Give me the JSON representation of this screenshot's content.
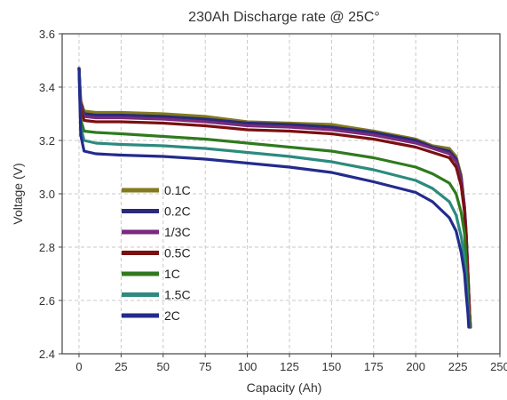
{
  "chart_data": {
    "type": "line",
    "title": "230Ah Discharge rate @ 25C°",
    "xlabel": "Capacity (Ah)",
    "ylabel": "Voltage (V)",
    "xlim": [
      -10,
      250
    ],
    "ylim": [
      2.4,
      3.6
    ],
    "x_ticks": [
      "0",
      "25",
      "50",
      "75",
      "100",
      "125",
      "150",
      "175",
      "200",
      "225",
      "250"
    ],
    "y_ticks": [
      "2.4",
      "2.6",
      "2.8",
      "3.0",
      "3.2",
      "3.4",
      "3.6"
    ],
    "grid": true,
    "legend_position": "bottom-left",
    "series": [
      {
        "name": "0.1C",
        "color": "#827a1e",
        "points": [
          [
            0,
            3.47
          ],
          [
            1,
            3.35
          ],
          [
            3,
            3.31
          ],
          [
            10,
            3.305
          ],
          [
            25,
            3.305
          ],
          [
            50,
            3.3
          ],
          [
            75,
            3.29
          ],
          [
            100,
            3.27
          ],
          [
            125,
            3.265
          ],
          [
            150,
            3.26
          ],
          [
            175,
            3.235
          ],
          [
            200,
            3.205
          ],
          [
            210,
            3.18
          ],
          [
            220,
            3.17
          ],
          [
            224,
            3.14
          ],
          [
            227,
            3.07
          ],
          [
            229,
            2.95
          ],
          [
            230,
            2.85
          ],
          [
            231,
            2.7
          ],
          [
            232,
            2.55
          ],
          [
            232.5,
            2.5
          ]
        ]
      },
      {
        "name": "0.2C",
        "color": "#2a2a7a",
        "points": [
          [
            0,
            3.47
          ],
          [
            1,
            3.34
          ],
          [
            3,
            3.3
          ],
          [
            10,
            3.295
          ],
          [
            25,
            3.295
          ],
          [
            50,
            3.29
          ],
          [
            75,
            3.28
          ],
          [
            100,
            3.265
          ],
          [
            125,
            3.26
          ],
          [
            150,
            3.25
          ],
          [
            175,
            3.23
          ],
          [
            200,
            3.2
          ],
          [
            210,
            3.175
          ],
          [
            220,
            3.16
          ],
          [
            224,
            3.13
          ],
          [
            227,
            3.06
          ],
          [
            229,
            2.95
          ],
          [
            230,
            2.85
          ],
          [
            231,
            2.7
          ],
          [
            232,
            2.55
          ],
          [
            232.5,
            2.5
          ]
        ]
      },
      {
        "name": "1/3C",
        "color": "#7a2a7e",
        "points": [
          [
            0,
            3.47
          ],
          [
            1,
            3.33
          ],
          [
            3,
            3.29
          ],
          [
            10,
            3.285
          ],
          [
            25,
            3.285
          ],
          [
            50,
            3.28
          ],
          [
            75,
            3.27
          ],
          [
            100,
            3.255
          ],
          [
            125,
            3.25
          ],
          [
            150,
            3.24
          ],
          [
            175,
            3.22
          ],
          [
            200,
            3.19
          ],
          [
            210,
            3.17
          ],
          [
            220,
            3.15
          ],
          [
            224,
            3.12
          ],
          [
            227,
            3.05
          ],
          [
            229,
            2.94
          ],
          [
            230,
            2.84
          ],
          [
            231,
            2.7
          ],
          [
            232,
            2.55
          ],
          [
            232.5,
            2.5
          ]
        ]
      },
      {
        "name": "0.5C",
        "color": "#7a1010",
        "points": [
          [
            0,
            3.47
          ],
          [
            1,
            3.32
          ],
          [
            3,
            3.275
          ],
          [
            10,
            3.27
          ],
          [
            25,
            3.27
          ],
          [
            50,
            3.265
          ],
          [
            75,
            3.255
          ],
          [
            100,
            3.24
          ],
          [
            125,
            3.235
          ],
          [
            150,
            3.225
          ],
          [
            175,
            3.205
          ],
          [
            200,
            3.175
          ],
          [
            210,
            3.155
          ],
          [
            220,
            3.135
          ],
          [
            224,
            3.1
          ],
          [
            227,
            3.03
          ],
          [
            229,
            2.93
          ],
          [
            230,
            2.83
          ],
          [
            231,
            2.7
          ],
          [
            232,
            2.55
          ],
          [
            232.5,
            2.5
          ]
        ]
      },
      {
        "name": "1C",
        "color": "#2f7a1e",
        "points": [
          [
            0,
            3.47
          ],
          [
            1,
            3.28
          ],
          [
            3,
            3.235
          ],
          [
            10,
            3.23
          ],
          [
            25,
            3.225
          ],
          [
            50,
            3.215
          ],
          [
            75,
            3.205
          ],
          [
            100,
            3.19
          ],
          [
            125,
            3.175
          ],
          [
            150,
            3.16
          ],
          [
            175,
            3.135
          ],
          [
            200,
            3.1
          ],
          [
            210,
            3.075
          ],
          [
            220,
            3.04
          ],
          [
            224,
            3.0
          ],
          [
            227,
            2.93
          ],
          [
            229,
            2.85
          ],
          [
            230,
            2.75
          ],
          [
            231,
            2.62
          ],
          [
            232,
            2.5
          ]
        ]
      },
      {
        "name": "1.5C",
        "color": "#2c8a7e",
        "points": [
          [
            0,
            3.47
          ],
          [
            1,
            3.25
          ],
          [
            3,
            3.2
          ],
          [
            10,
            3.19
          ],
          [
            25,
            3.185
          ],
          [
            50,
            3.18
          ],
          [
            75,
            3.17
          ],
          [
            100,
            3.155
          ],
          [
            125,
            3.14
          ],
          [
            150,
            3.12
          ],
          [
            175,
            3.09
          ],
          [
            200,
            3.05
          ],
          [
            210,
            3.02
          ],
          [
            220,
            2.97
          ],
          [
            224,
            2.92
          ],
          [
            227,
            2.84
          ],
          [
            229,
            2.76
          ],
          [
            230,
            2.68
          ],
          [
            231,
            2.58
          ],
          [
            232,
            2.5
          ]
        ]
      },
      {
        "name": "2C",
        "color": "#232b8c",
        "points": [
          [
            0,
            3.47
          ],
          [
            1,
            3.22
          ],
          [
            3,
            3.16
          ],
          [
            10,
            3.15
          ],
          [
            25,
            3.145
          ],
          [
            50,
            3.14
          ],
          [
            75,
            3.13
          ],
          [
            100,
            3.115
          ],
          [
            125,
            3.1
          ],
          [
            150,
            3.08
          ],
          [
            175,
            3.045
          ],
          [
            200,
            3.005
          ],
          [
            210,
            2.97
          ],
          [
            220,
            2.91
          ],
          [
            224,
            2.86
          ],
          [
            227,
            2.78
          ],
          [
            229,
            2.7
          ],
          [
            230,
            2.62
          ],
          [
            231,
            2.55
          ],
          [
            231.5,
            2.5
          ]
        ]
      }
    ]
  }
}
